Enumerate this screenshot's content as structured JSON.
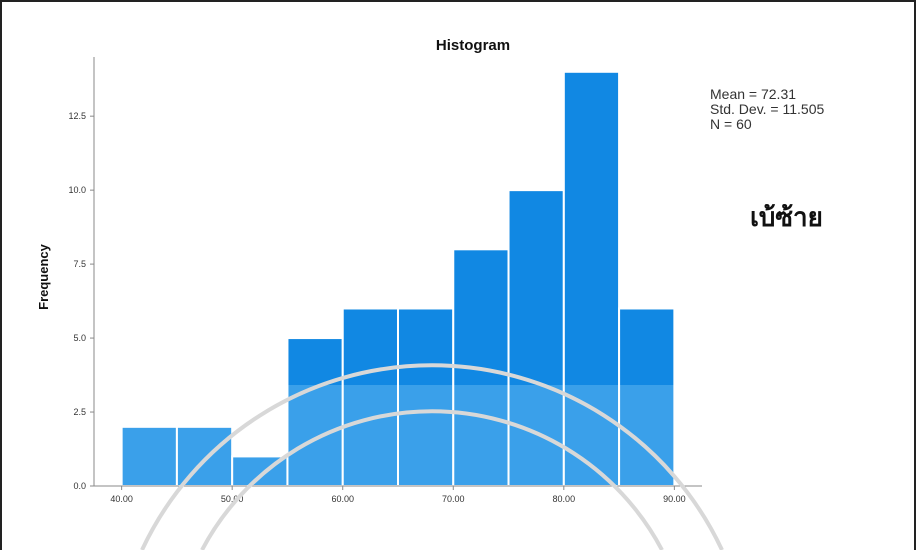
{
  "chart_data": {
    "type": "bar",
    "title": "Histogram",
    "xlabel": "",
    "ylabel": "Frequency",
    "bins": [
      {
        "start": 40,
        "end": 45,
        "count": 2
      },
      {
        "start": 45,
        "end": 50,
        "count": 2
      },
      {
        "start": 50,
        "end": 55,
        "count": 1
      },
      {
        "start": 55,
        "end": 60,
        "count": 5
      },
      {
        "start": 60,
        "end": 65,
        "count": 6
      },
      {
        "start": 65,
        "end": 70,
        "count": 6
      },
      {
        "start": 70,
        "end": 75,
        "count": 8
      },
      {
        "start": 75,
        "end": 80,
        "count": 10
      },
      {
        "start": 80,
        "end": 85,
        "count": 14
      },
      {
        "start": 85,
        "end": 90,
        "count": 6
      }
    ],
    "xlim": [
      37.5,
      92.5
    ],
    "ylim": [
      0,
      14.5
    ],
    "x_ticks": [
      40,
      50,
      60,
      70,
      80,
      90
    ],
    "x_tick_labels": [
      "40.00",
      "50.00",
      "60.00",
      "70.00",
      "80.00",
      "90.00"
    ],
    "y_ticks": [
      0,
      2.5,
      5,
      7.5,
      10,
      12.5
    ],
    "y_tick_labels": [
      "0.0",
      "2.5",
      "5.0",
      "7.5",
      "10.0",
      "12.5"
    ],
    "stats": [
      "Mean = 72.31",
      "Std. Dev. = 11.505",
      "N = 60"
    ],
    "annotation": "เบ้ซ้าย",
    "colors": {
      "bar": "#1188e3",
      "bar_light": "#3aa0ea",
      "bar_edge": "#ffffff",
      "axis": "#888888"
    },
    "grid": false
  }
}
